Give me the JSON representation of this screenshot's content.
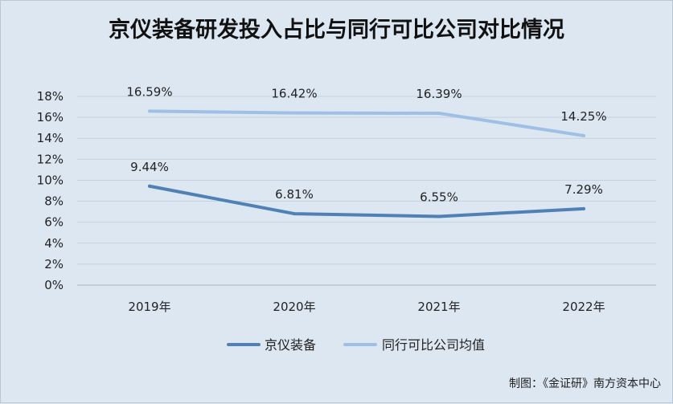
{
  "chart_data": {
    "type": "line",
    "title": "京仪装备研发投入占比与同行可比公司对比情况",
    "categories": [
      "2019年",
      "2020年",
      "2021年",
      "2022年"
    ],
    "yticks": [
      "0%",
      "2%",
      "4%",
      "6%",
      "8%",
      "10%",
      "12%",
      "14%",
      "16%",
      "18%"
    ],
    "ylim": [
      0,
      18
    ],
    "grid": true,
    "legend_position": "bottom",
    "series": [
      {
        "name": "京仪装备",
        "values": [
          9.44,
          6.81,
          6.55,
          7.29
        ],
        "labels": [
          "9.44%",
          "6.81%",
          "6.55%",
          "7.29%"
        ],
        "color": "#4f81b5"
      },
      {
        "name": "同行可比公司均值",
        "values": [
          16.59,
          16.42,
          16.39,
          14.25
        ],
        "labels": [
          "16.59%",
          "16.42%",
          "16.39%",
          "14.25%"
        ],
        "color": "#9fc0e4"
      }
    ]
  },
  "credit": "制图：《金证研》南方资本中心"
}
